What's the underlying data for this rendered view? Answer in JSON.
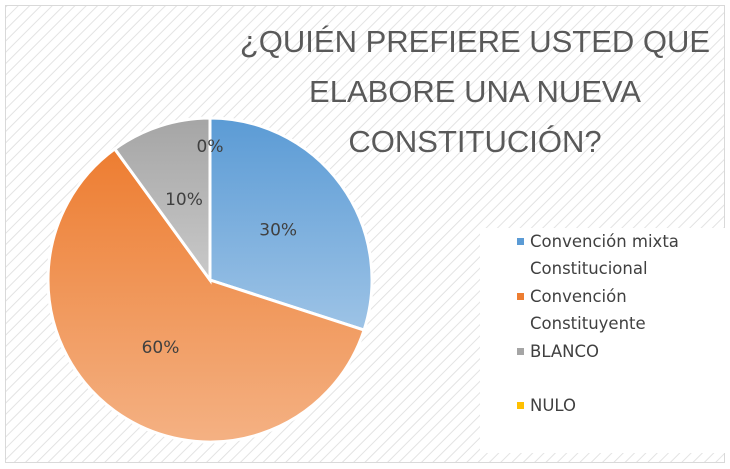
{
  "chart_data": {
    "type": "pie",
    "title": "¿QUIÉN PREFIERE USTED QUE ELABORE UNA NUEVA CONSTITUCIÓN?",
    "categories": [
      "Convención mixta Constitucional",
      "Convención Constituyente",
      "BLANCO",
      "NULO"
    ],
    "values": [
      30,
      60,
      10,
      0
    ],
    "value_labels": [
      "30%",
      "60%",
      "10%",
      "0%"
    ],
    "colors": [
      "#5b9bd5",
      "#ed7d31",
      "#a5a5a5",
      "#ffc000"
    ],
    "legend": "right"
  }
}
